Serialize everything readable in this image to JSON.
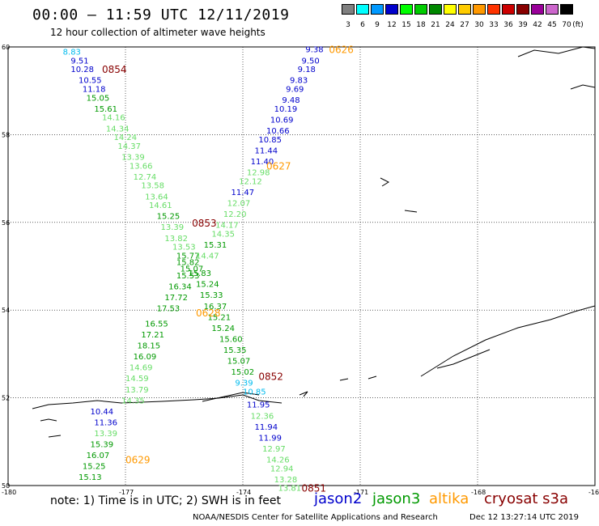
{
  "header": {
    "title": "00:00 – 11:59 UTC 12/11/2019",
    "subtitle": "12 hour collection of altimeter wave heights"
  },
  "scale": {
    "unit": "(ft)",
    "bins": [
      {
        "label": "3",
        "color": "#808080"
      },
      {
        "label": "6",
        "color": "#00ffff"
      },
      {
        "label": "9",
        "color": "#0099ff"
      },
      {
        "label": "12",
        "color": "#0000cc"
      },
      {
        "label": "15",
        "color": "#00ff00"
      },
      {
        "label": "18",
        "color": "#00cc00"
      },
      {
        "label": "21",
        "color": "#008800"
      },
      {
        "label": "24",
        "color": "#ffff00"
      },
      {
        "label": "27",
        "color": "#ffcc00"
      },
      {
        "label": "30",
        "color": "#ff9900"
      },
      {
        "label": "33",
        "color": "#ff3300"
      },
      {
        "label": "36",
        "color": "#cc0000"
      },
      {
        "label": "39",
        "color": "#880000"
      },
      {
        "label": "42",
        "color": "#990099"
      },
      {
        "label": "45",
        "color": "#cc66cc"
      },
      {
        "label": "70",
        "color": "#000000"
      }
    ]
  },
  "axes": {
    "lat_labels": [
      "60",
      "58",
      "56",
      "54",
      "52",
      "50"
    ],
    "lon_labels": [
      "-180",
      "-177",
      "-174",
      "-171",
      "-168",
      "-16"
    ]
  },
  "colors": {
    "jason2": "#0000cc",
    "jason3": "#009900",
    "altika": "#ff9900",
    "cryosat": "#880000",
    "light": "#66dd66",
    "cyan": "#00bbee"
  },
  "times": [
    {
      "text": "0626",
      "sat": "altika",
      "lon": -171.8,
      "lat": 59.95
    },
    {
      "text": "0854",
      "sat": "cryosat",
      "lon": -177.6,
      "lat": 59.5
    },
    {
      "text": "0627",
      "sat": "altika",
      "lon": -173.4,
      "lat": 57.3
    },
    {
      "text": "0853",
      "sat": "cryosat",
      "lon": -175.3,
      "lat": 56.0
    },
    {
      "text": "0628",
      "sat": "altika",
      "lon": -175.2,
      "lat": 53.95
    },
    {
      "text": "0852",
      "sat": "cryosat",
      "lon": -173.6,
      "lat": 52.5
    },
    {
      "text": "0629",
      "sat": "altika",
      "lon": -177.0,
      "lat": 50.6
    },
    {
      "text": "0851",
      "sat": "cryosat",
      "lon": -172.5,
      "lat": 49.95
    }
  ],
  "tracks": [
    {
      "name": "cryosat-a",
      "color": "light",
      "points": [
        {
          "v": "8.83",
          "lon": -178.6,
          "lat": 59.9,
          "c": "cyan"
        },
        {
          "v": "9.51",
          "lon": -178.4,
          "lat": 59.7,
          "c": "jason2"
        },
        {
          "v": "10.28",
          "lon": -178.4,
          "lat": 59.5,
          "c": "jason2"
        },
        {
          "v": "10.55",
          "lon": -178.2,
          "lat": 59.25,
          "c": "jason2"
        },
        {
          "v": "11.18",
          "lon": -178.1,
          "lat": 59.05,
          "c": "jason2"
        },
        {
          "v": "15.05",
          "lon": -178.0,
          "lat": 58.85,
          "c": "jason3"
        },
        {
          "v": "15.61",
          "lon": -177.8,
          "lat": 58.6,
          "c": "jason3"
        },
        {
          "v": "14.16",
          "lon": -177.6,
          "lat": 58.4,
          "c": "light"
        },
        {
          "v": "14.34",
          "lon": -177.5,
          "lat": 58.15,
          "c": "light"
        },
        {
          "v": "14.24",
          "lon": -177.3,
          "lat": 57.95,
          "c": "light"
        },
        {
          "v": "14.37",
          "lon": -177.2,
          "lat": 57.75,
          "c": "light"
        },
        {
          "v": "13.39",
          "lon": -177.1,
          "lat": 57.5,
          "c": "light"
        },
        {
          "v": "13.66",
          "lon": -176.9,
          "lat": 57.3,
          "c": "light"
        },
        {
          "v": "12.74",
          "lon": -176.8,
          "lat": 57.05,
          "c": "light"
        },
        {
          "v": "13.58",
          "lon": -176.6,
          "lat": 56.85,
          "c": "light"
        },
        {
          "v": "13.64",
          "lon": -176.5,
          "lat": 56.6,
          "c": "light"
        },
        {
          "v": "14.61",
          "lon": -176.4,
          "lat": 56.4,
          "c": "light"
        },
        {
          "v": "15.25",
          "lon": -176.2,
          "lat": 56.15,
          "c": "jason3"
        },
        {
          "v": "13.39",
          "lon": -176.1,
          "lat": 55.9,
          "c": "light"
        },
        {
          "v": "13.82",
          "lon": -176.0,
          "lat": 55.65,
          "c": "light"
        },
        {
          "v": "13.53",
          "lon": -175.8,
          "lat": 55.45,
          "c": "light"
        },
        {
          "v": "15.77",
          "lon": -175.7,
          "lat": 55.25,
          "c": "jason3"
        },
        {
          "v": "15.82",
          "lon": -175.7,
          "lat": 55.1,
          "c": "jason3"
        },
        {
          "v": "15.07",
          "lon": -175.6,
          "lat": 54.95,
          "c": "jason3"
        },
        {
          "v": "15.53",
          "lon": -175.7,
          "lat": 54.8,
          "c": "jason3"
        },
        {
          "v": "16.34",
          "lon": -175.9,
          "lat": 54.55,
          "c": "jason3"
        },
        {
          "v": "17.72",
          "lon": -176.0,
          "lat": 54.3,
          "c": "jason3"
        },
        {
          "v": "17.53",
          "lon": -176.2,
          "lat": 54.05,
          "c": "jason3"
        },
        {
          "v": "16.55",
          "lon": -176.5,
          "lat": 53.7,
          "c": "jason3"
        },
        {
          "v": "17.21",
          "lon": -176.6,
          "lat": 53.45,
          "c": "jason3"
        },
        {
          "v": "18.15",
          "lon": -176.7,
          "lat": 53.2,
          "c": "jason3"
        },
        {
          "v": "16.09",
          "lon": -176.8,
          "lat": 52.95,
          "c": "jason3"
        },
        {
          "v": "14.69",
          "lon": -176.9,
          "lat": 52.7,
          "c": "light"
        },
        {
          "v": "14.59",
          "lon": -177.0,
          "lat": 52.45,
          "c": "light"
        },
        {
          "v": "13.79",
          "lon": -177.0,
          "lat": 52.2,
          "c": "light"
        },
        {
          "v": "14.35",
          "lon": -177.1,
          "lat": 51.95,
          "c": "light"
        }
      ]
    },
    {
      "name": "altika-a",
      "color": "light",
      "points": [
        {
          "v": "9.38",
          "lon": -172.4,
          "lat": 59.95,
          "c": "jason2"
        },
        {
          "v": "9.50",
          "lon": -172.5,
          "lat": 59.7,
          "c": "jason2"
        },
        {
          "v": "9.18",
          "lon": -172.6,
          "lat": 59.5,
          "c": "jason2"
        },
        {
          "v": "9.83",
          "lon": -172.8,
          "lat": 59.25,
          "c": "jason2"
        },
        {
          "v": "9.69",
          "lon": -172.9,
          "lat": 59.05,
          "c": "jason2"
        },
        {
          "v": "9.48",
          "lon": -173.0,
          "lat": 58.8,
          "c": "jason2"
        },
        {
          "v": "10.19",
          "lon": -173.2,
          "lat": 58.6,
          "c": "jason2"
        },
        {
          "v": "10.69",
          "lon": -173.3,
          "lat": 58.35,
          "c": "jason2"
        },
        {
          "v": "10.66",
          "lon": -173.4,
          "lat": 58.1,
          "c": "jason2"
        },
        {
          "v": "10.85",
          "lon": -173.6,
          "lat": 57.9,
          "c": "jason2"
        },
        {
          "v": "11.44",
          "lon": -173.7,
          "lat": 57.65,
          "c": "jason2"
        },
        {
          "v": "11.40",
          "lon": -173.8,
          "lat": 57.4,
          "c": "jason2"
        },
        {
          "v": "12.98",
          "lon": -173.9,
          "lat": 57.15,
          "c": "light"
        },
        {
          "v": "12.12",
          "lon": -174.1,
          "lat": 56.95,
          "c": "light"
        },
        {
          "v": "11.47",
          "lon": -174.3,
          "lat": 56.7,
          "c": "jason2"
        },
        {
          "v": "12.07",
          "lon": -174.4,
          "lat": 56.45,
          "c": "light"
        },
        {
          "v": "12.20",
          "lon": -174.5,
          "lat": 56.2,
          "c": "light"
        },
        {
          "v": "14.17",
          "lon": -174.7,
          "lat": 55.95,
          "c": "light"
        },
        {
          "v": "14.35",
          "lon": -174.8,
          "lat": 55.75,
          "c": "light"
        },
        {
          "v": "15.31",
          "lon": -175.0,
          "lat": 55.5,
          "c": "jason3"
        },
        {
          "v": "14.47",
          "lon": -175.2,
          "lat": 55.25,
          "c": "light"
        },
        {
          "v": "15.83",
          "lon": -175.4,
          "lat": 54.85,
          "c": "jason3"
        },
        {
          "v": "15.24",
          "lon": -175.2,
          "lat": 54.6,
          "c": "jason3"
        },
        {
          "v": "15.33",
          "lon": -175.1,
          "lat": 54.35,
          "c": "jason3"
        },
        {
          "v": "16.37",
          "lon": -175.0,
          "lat": 54.1,
          "c": "jason3"
        },
        {
          "v": "15.21",
          "lon": -174.9,
          "lat": 53.85,
          "c": "jason3"
        },
        {
          "v": "15.24",
          "lon": -174.8,
          "lat": 53.6,
          "c": "jason3"
        },
        {
          "v": "15.60",
          "lon": -174.6,
          "lat": 53.35,
          "c": "jason3"
        },
        {
          "v": "15.35",
          "lon": -174.5,
          "lat": 53.1,
          "c": "jason3"
        },
        {
          "v": "15.07",
          "lon": -174.4,
          "lat": 52.85,
          "c": "jason3"
        },
        {
          "v": "15.02",
          "lon": -174.3,
          "lat": 52.6,
          "c": "jason3"
        },
        {
          "v": "9.39",
          "lon": -174.2,
          "lat": 52.35,
          "c": "cyan"
        },
        {
          "v": "10.85",
          "lon": -174.0,
          "lat": 52.15,
          "c": "cyan"
        }
      ]
    },
    {
      "name": "altika-b",
      "color": "light",
      "points": [
        {
          "v": "11.95",
          "lon": -173.9,
          "lat": 51.85,
          "c": "jason2"
        },
        {
          "v": "12.36",
          "lon": -173.8,
          "lat": 51.6,
          "c": "light"
        },
        {
          "v": "11.94",
          "lon": -173.7,
          "lat": 51.35,
          "c": "jason2"
        },
        {
          "v": "11.99",
          "lon": -173.6,
          "lat": 51.1,
          "c": "jason2"
        },
        {
          "v": "12.97",
          "lon": -173.5,
          "lat": 50.85,
          "c": "light"
        },
        {
          "v": "14.26",
          "lon": -173.4,
          "lat": 50.6,
          "c": "light"
        },
        {
          "v": "12.94",
          "lon": -173.3,
          "lat": 50.4,
          "c": "light"
        },
        {
          "v": "13.28",
          "lon": -173.2,
          "lat": 50.15,
          "c": "light"
        },
        {
          "v": "13.81",
          "lon": -173.1,
          "lat": 49.95,
          "c": "light"
        }
      ]
    },
    {
      "name": "cryosat-b",
      "color": "light",
      "points": [
        {
          "v": "10.44",
          "lon": -177.9,
          "lat": 51.7,
          "c": "jason2"
        },
        {
          "v": "11.36",
          "lon": -177.8,
          "lat": 51.45,
          "c": "jason2"
        },
        {
          "v": "13.39",
          "lon": -177.8,
          "lat": 51.2,
          "c": "light"
        },
        {
          "v": "15.39",
          "lon": -177.9,
          "lat": 50.95,
          "c": "jason3"
        },
        {
          "v": "16.07",
          "lon": -178.0,
          "lat": 50.7,
          "c": "jason3"
        },
        {
          "v": "15.25",
          "lon": -178.1,
          "lat": 50.45,
          "c": "jason3"
        },
        {
          "v": "15.13",
          "lon": -178.2,
          "lat": 50.2,
          "c": "jason3"
        }
      ]
    }
  ],
  "footer": {
    "note": "note: 1) Time is in UTC; 2) SWH is in feet",
    "legend": [
      {
        "text": "jason2",
        "sat": "jason2"
      },
      {
        "text": "jason3",
        "sat": "jason3"
      },
      {
        "text": "altika",
        "sat": "altika"
      },
      {
        "text": "cryosat s3a",
        "sat": "cryosat"
      }
    ],
    "credit": "NOAA/NESDIS Center for Satellite Applications and Research",
    "stamp": "Dec 12 13:27:14 UTC 2019"
  }
}
